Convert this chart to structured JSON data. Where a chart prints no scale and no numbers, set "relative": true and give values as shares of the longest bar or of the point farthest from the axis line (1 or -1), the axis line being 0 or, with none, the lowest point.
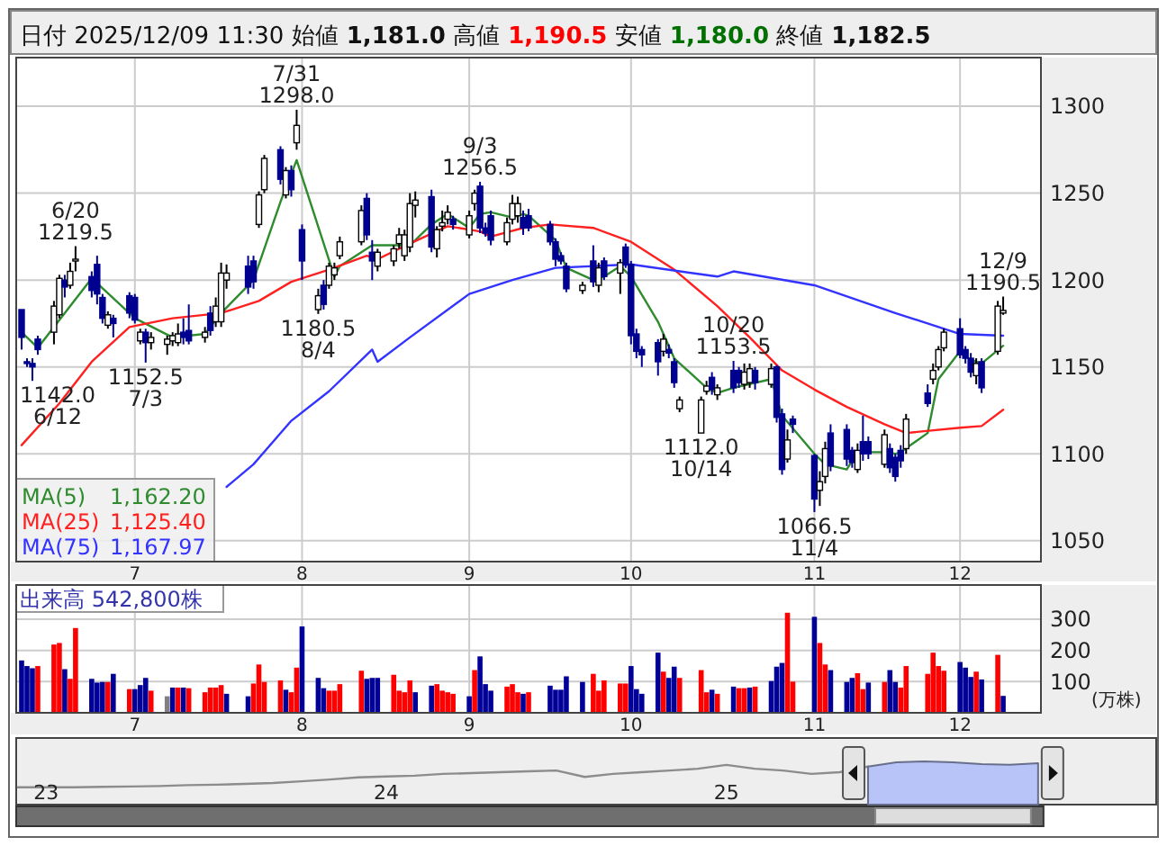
{
  "chart_data": [
    {
      "type": "candlestick",
      "title": "日付 2025/12/09 11:30 始値 1,181.0 高値 1,190.5 安値 1,180.0 終値 1,182.5",
      "x": [
        "2025-06-10",
        "2025-06-11",
        "2025-06-12",
        "2025-06-13",
        "2025-06-16",
        "2025-06-17",
        "2025-06-18",
        "2025-06-19",
        "2025-06-20",
        "2025-06-23",
        "2025-06-24",
        "2025-06-25",
        "2025-06-26",
        "2025-06-27",
        "2025-06-30",
        "2025-07-01",
        "2025-07-02",
        "2025-07-03",
        "2025-07-04",
        "2025-07-07",
        "2025-07-08",
        "2025-07-09",
        "2025-07-10",
        "2025-07-11",
        "2025-07-14",
        "2025-07-15",
        "2025-07-16",
        "2025-07-17",
        "2025-07-18",
        "2025-07-22",
        "2025-07-23",
        "2025-07-24",
        "2025-07-25",
        "2025-07-28",
        "2025-07-29",
        "2025-07-30",
        "2025-07-31",
        "2025-08-01",
        "2025-08-04",
        "2025-08-05",
        "2025-08-06",
        "2025-08-07",
        "2025-08-08",
        "2025-08-12",
        "2025-08-13",
        "2025-08-14",
        "2025-08-15",
        "2025-08-18",
        "2025-08-19",
        "2025-08-20",
        "2025-08-21",
        "2025-08-22",
        "2025-08-25",
        "2025-08-26",
        "2025-08-27",
        "2025-08-28",
        "2025-08-29",
        "2025-09-01",
        "2025-09-02",
        "2025-09-03",
        "2025-09-04",
        "2025-09-05",
        "2025-09-08",
        "2025-09-09",
        "2025-09-10",
        "2025-09-11",
        "2025-09-12",
        "2025-09-16",
        "2025-09-17",
        "2025-09-18",
        "2025-09-19",
        "2025-09-22",
        "2025-09-24",
        "2025-09-25",
        "2025-09-26",
        "2025-09-29",
        "2025-09-30",
        "2025-10-01",
        "2025-10-02",
        "2025-10-03",
        "2025-10-06",
        "2025-10-07",
        "2025-10-08",
        "2025-10-09",
        "2025-10-10",
        "2025-10-14",
        "2025-10-15",
        "2025-10-16",
        "2025-10-17",
        "2025-10-20",
        "2025-10-21",
        "2025-10-22",
        "2025-10-23",
        "2025-10-24",
        "2025-10-27",
        "2025-10-28",
        "2025-10-29",
        "2025-10-30",
        "2025-10-31",
        "2025-11-04",
        "2025-11-05",
        "2025-11-06",
        "2025-11-07",
        "2025-11-10",
        "2025-11-11",
        "2025-11-12",
        "2025-11-13",
        "2025-11-14",
        "2025-11-17",
        "2025-11-18",
        "2025-11-19",
        "2025-11-20",
        "2025-11-21",
        "2025-11-25",
        "2025-11-26",
        "2025-11-27",
        "2025-11-28",
        "2025-12-01",
        "2025-12-02",
        "2025-12-03",
        "2025-12-04",
        "2025-12-05",
        "2025-12-08",
        "2025-12-09"
      ],
      "ohlc": [
        [
          1183,
          1183,
          1160,
          1167
        ],
        [
          1153,
          1155,
          1150,
          1152
        ],
        [
          1152,
          1155,
          1142,
          1150
        ],
        [
          1166,
          1168,
          1157,
          1160
        ],
        [
          1170,
          1188,
          1163,
          1185
        ],
        [
          1180,
          1203,
          1178,
          1201
        ],
        [
          1200,
          1203,
          1190,
          1196
        ],
        [
          1197,
          1210,
          1195,
          1205
        ],
        [
          1212,
          1219.5,
          1205,
          1212
        ],
        [
          1202,
          1205,
          1190,
          1194
        ],
        [
          1209,
          1214,
          1186,
          1192
        ],
        [
          1190,
          1192,
          1175,
          1178
        ],
        [
          1174,
          1182,
          1172,
          1180
        ],
        [
          1178,
          1180,
          1167,
          1175
        ],
        [
          1191,
          1193,
          1178,
          1181
        ],
        [
          1190,
          1192,
          1175,
          1177
        ],
        [
          1165,
          1172,
          1163,
          1170
        ],
        [
          1170,
          1172,
          1152.5,
          1164
        ],
        [
          1164,
          1170,
          1160,
          1167
        ],
        [
          1163,
          1168,
          1157,
          1166
        ],
        [
          1165,
          1170,
          1162,
          1168
        ],
        [
          1164,
          1175,
          1162,
          1169
        ],
        [
          1170,
          1178,
          1163,
          1167
        ],
        [
          1171,
          1186,
          1163,
          1165
        ],
        [
          1167,
          1173,
          1164,
          1170
        ],
        [
          1181,
          1185,
          1168,
          1171
        ],
        [
          1176,
          1190,
          1173,
          1185
        ],
        [
          1176,
          1210,
          1173,
          1204
        ],
        [
          1200,
          1209,
          1195,
          1204
        ],
        [
          1208,
          1214,
          1192,
          1196
        ],
        [
          1211,
          1214,
          1195,
          1199
        ],
        [
          1232,
          1251,
          1230,
          1249
        ],
        [
          1252,
          1272,
          1250,
          1270
        ],
        [
          1275,
          1277,
          1255,
          1258
        ],
        [
          1249,
          1265,
          1247,
          1263
        ],
        [
          1263,
          1266,
          1248,
          1252
        ],
        [
          1279,
          1298,
          1275,
          1289
        ],
        [
          1229,
          1232,
          1200,
          1211
        ],
        [
          1183,
          1195,
          1180.5,
          1191
        ],
        [
          1197,
          1200,
          1183,
          1186
        ],
        [
          1197,
          1210,
          1195,
          1208
        ],
        [
          1203,
          1210,
          1200,
          1207
        ],
        [
          1214,
          1225,
          1212,
          1222
        ],
        [
          1222,
          1243,
          1220,
          1240
        ],
        [
          1247,
          1250,
          1223,
          1226
        ],
        [
          1216,
          1223,
          1200,
          1211
        ],
        [
          1208,
          1218,
          1205,
          1216
        ],
        [
          1211,
          1220,
          1208,
          1218
        ],
        [
          1221,
          1230,
          1218,
          1226
        ],
        [
          1214,
          1229,
          1211,
          1226
        ],
        [
          1219,
          1250,
          1216,
          1244
        ],
        [
          1243,
          1251,
          1236,
          1246
        ],
        [
          1248,
          1252,
          1216,
          1219
        ],
        [
          1218,
          1231,
          1213,
          1229
        ],
        [
          1231,
          1240,
          1228,
          1233
        ],
        [
          1235,
          1243,
          1232,
          1239
        ],
        [
          1235,
          1237,
          1229,
          1232
        ],
        [
          1226,
          1240,
          1224,
          1237
        ],
        [
          1244,
          1252,
          1240,
          1250
        ],
        [
          1254,
          1256.5,
          1227,
          1230
        ],
        [
          1230,
          1233,
          1225,
          1227
        ],
        [
          1237,
          1240,
          1220,
          1223
        ],
        [
          1222,
          1236,
          1220,
          1233
        ],
        [
          1235,
          1249,
          1232,
          1244
        ],
        [
          1237,
          1248,
          1233,
          1244
        ],
        [
          1236,
          1240,
          1226,
          1230
        ],
        [
          1237,
          1241,
          1228,
          1230
        ],
        [
          1232,
          1234,
          1220,
          1222
        ],
        [
          1222,
          1224,
          1208,
          1212
        ],
        [
          1214,
          1216,
          1209,
          1211
        ],
        [
          1208,
          1210,
          1193,
          1195
        ],
        [
          1194,
          1199,
          1192,
          1197
        ],
        [
          1211,
          1220,
          1196,
          1199
        ],
        [
          1197,
          1210,
          1193,
          1207
        ],
        [
          1211,
          1213,
          1200,
          1202
        ],
        [
          1204,
          1212,
          1192,
          1210
        ],
        [
          1219,
          1221,
          1207,
          1209
        ],
        [
          1209,
          1211,
          1163,
          1168
        ],
        [
          1169,
          1172,
          1155,
          1159
        ],
        [
          1160,
          1162,
          1150,
          1157
        ],
        [
          1164,
          1166,
          1145,
          1153
        ],
        [
          1159,
          1169,
          1156,
          1166
        ],
        [
          1160,
          1163,
          1155,
          1158
        ],
        [
          1153,
          1155,
          1138,
          1141
        ],
        [
          1126,
          1133,
          1124,
          1131
        ],
        [
          1112,
          1133,
          1112,
          1131
        ],
        [
          1136,
          1142,
          1134,
          1139
        ],
        [
          1144,
          1147,
          1134,
          1137
        ],
        [
          1134,
          1140,
          1131,
          1138
        ],
        [
          1148,
          1153.5,
          1135,
          1138
        ],
        [
          1148,
          1150,
          1138,
          1141
        ],
        [
          1140,
          1152,
          1137,
          1147
        ],
        [
          1141,
          1152,
          1138,
          1149
        ],
        [
          1148,
          1150,
          1137,
          1141
        ],
        [
          1140,
          1152,
          1138,
          1149
        ],
        [
          1150,
          1151,
          1118,
          1121
        ],
        [
          1123,
          1126,
          1088,
          1091
        ],
        [
          1097,
          1114,
          1095,
          1108
        ],
        [
          1120,
          1122,
          1112,
          1117
        ],
        [
          1099,
          1100,
          1066.5,
          1074
        ],
        [
          1079,
          1090,
          1070,
          1084
        ],
        [
          1087,
          1107,
          1083,
          1103
        ],
        [
          1112,
          1117,
          1090,
          1093
        ],
        [
          1114,
          1117,
          1093,
          1097
        ],
        [
          1102,
          1104,
          1092,
          1095
        ],
        [
          1091,
          1106,
          1089,
          1102
        ],
        [
          1107,
          1122,
          1096,
          1100
        ],
        [
          1107,
          1110,
          1097,
          1100
        ],
        [
          1094,
          1114,
          1092,
          1111
        ],
        [
          1103,
          1106,
          1089,
          1092
        ],
        [
          1098,
          1100,
          1084,
          1087
        ],
        [
          1102,
          1105,
          1092,
          1096
        ],
        [
          1103,
          1123,
          1100,
          1120
        ],
        [
          1135,
          1140,
          1127,
          1129
        ],
        [
          1143,
          1152,
          1140,
          1148
        ],
        [
          1150,
          1162,
          1148,
          1160
        ],
        [
          1161,
          1172,
          1159,
          1170
        ],
        [
          1172,
          1178,
          1155,
          1157
        ],
        [
          1160,
          1162,
          1152,
          1155
        ],
        [
          1155,
          1158,
          1144,
          1147
        ],
        [
          1145,
          1155,
          1140,
          1152
        ],
        [
          1153,
          1155,
          1135,
          1138
        ],
        [
          1159,
          1188,
          1157,
          1185
        ],
        [
          1181,
          1190.5,
          1180,
          1182.5
        ]
      ],
      "series": [
        {
          "type": "line",
          "name": "MA(5) 1,162.20",
          "color": "#2e8b2e",
          "x": [
            "2025-06-10",
            "2025-06-13",
            "2025-06-23",
            "2025-07-01",
            "2025-07-08",
            "2025-07-14",
            "2025-07-17",
            "2025-07-23",
            "2025-07-28",
            "2025-07-31",
            "2025-08-07",
            "2025-08-08",
            "2025-08-14",
            "2025-08-21",
            "2025-08-25",
            "2025-08-28",
            "2025-09-01",
            "2025-09-03",
            "2025-09-05",
            "2025-09-09",
            "2025-09-11",
            "2025-09-12",
            "2025-09-17",
            "2025-09-19",
            "2025-09-24",
            "2025-09-26",
            "2025-09-29",
            "2025-10-01",
            "2025-10-06",
            "2025-10-09",
            "2025-10-15",
            "2025-10-17",
            "2025-10-20",
            "2025-10-27",
            "2025-10-29",
            "2025-11-04",
            "2025-11-06",
            "2025-11-10",
            "2025-11-12",
            "2025-11-17",
            "2025-11-19",
            "2025-11-20",
            "2025-11-25",
            "2025-11-27",
            "2025-12-01",
            "2025-12-03",
            "2025-12-05",
            "2025-12-09"
          ],
          "values": [
            1170,
            1161,
            1201,
            1178,
            1167,
            1169,
            1181,
            1200,
            1245,
            1269,
            1202,
            1208,
            1220,
            1220,
            1232,
            1238,
            1230,
            1238,
            1239,
            1236,
            1238,
            1237,
            1223,
            1207,
            1200,
            1202,
            1208,
            1202,
            1176,
            1155,
            1138,
            1135,
            1138,
            1143,
            1122,
            1100,
            1094,
            1091,
            1101,
            1101,
            1100,
            1101,
            1112,
            1143,
            1159,
            1154,
            1152,
            1162.2
          ]
        },
        {
          "type": "line",
          "name": "MA(25) 1,125.40",
          "color": "#ff2020",
          "x": [
            "2025-06-10",
            "2025-06-17",
            "2025-06-23",
            "2025-06-30",
            "2025-07-08",
            "2025-07-17",
            "2025-07-24",
            "2025-07-30",
            "2025-08-06",
            "2025-08-13",
            "2025-08-15",
            "2025-08-21",
            "2025-08-28",
            "2025-09-03",
            "2025-09-05",
            "2025-09-11",
            "2025-09-16",
            "2025-09-24",
            "2025-10-01",
            "2025-10-09",
            "2025-10-17",
            "2025-10-23",
            "2025-10-29",
            "2025-11-04",
            "2025-11-10",
            "2025-11-17",
            "2025-11-21",
            "2025-12-01",
            "2025-12-05",
            "2025-12-09"
          ],
          "values": [
            1105,
            1129,
            1153,
            1173,
            1178,
            1181,
            1188,
            1199,
            1206,
            1214,
            1212,
            1221,
            1231,
            1228,
            1225,
            1230,
            1232,
            1230,
            1222,
            1206,
            1185,
            1167,
            1148,
            1137,
            1127,
            1117,
            1112,
            1115,
            1116,
            1125.4
          ]
        },
        {
          "type": "line",
          "name": "MA(75) 1,167.97",
          "color": "#3333ff",
          "x": [
            "2025-07-18",
            "2025-07-23",
            "2025-07-30",
            "2025-08-06",
            "2025-08-14",
            "2025-08-15",
            "2025-08-21",
            "2025-09-01",
            "2025-09-09",
            "2025-09-17",
            "2025-10-01",
            "2025-10-17",
            "2025-10-20",
            "2025-11-04",
            "2025-11-19",
            "2025-12-01",
            "2025-12-09"
          ],
          "values": [
            1081,
            1094,
            1119,
            1136,
            1160,
            1153,
            1167,
            1192,
            1200,
            1207,
            1209,
            1202,
            1205,
            1197,
            1181,
            1169,
            1167.97
          ]
        }
      ],
      "ylim": [
        1038,
        1328
      ],
      "yticks": [
        1050,
        1100,
        1150,
        1200,
        1250,
        1300
      ],
      "xlim": [
        "2025-06-09",
        "2025-12-16"
      ],
      "xticks": [
        {
          "value": "2025-07-01",
          "label": "7"
        },
        {
          "value": "2025-08-01",
          "label": "8"
        },
        {
          "value": "2025-09-01",
          "label": "9"
        },
        {
          "value": "2025-10-01",
          "label": "10"
        },
        {
          "value": "2025-11-04",
          "label": "11"
        },
        {
          "value": "2025-12-01",
          "label": "12"
        }
      ],
      "grid": true,
      "legend": "bottom left",
      "annotations": [
        {
          "text": "1142.0\n6/12",
          "x": "2025-06-12",
          "y": 1142
        },
        {
          "text": "6/20\n1219.5",
          "x": "2025-06-20",
          "y": 1219.5
        },
        {
          "text": "1152.5\n7/3",
          "x": "2025-07-03",
          "y": 1152.5
        },
        {
          "text": "7/31\n1298.0",
          "x": "2025-07-31",
          "y": 1298
        },
        {
          "text": "1180.5\n8/4",
          "x": "2025-08-04",
          "y": 1180.5
        },
        {
          "text": "9/3\n1256.5",
          "x": "2025-09-03",
          "y": 1256.5
        },
        {
          "text": "10/20\n1153.5",
          "x": "2025-10-20",
          "y": 1153.5
        },
        {
          "text": "1112.0\n10/14",
          "x": "2025-10-14",
          "y": 1112
        },
        {
          "text": "1066.5\n11/4",
          "x": "2025-11-04",
          "y": 1066.5
        },
        {
          "text": "12/9\n1190.5",
          "x": "2025-12-09",
          "y": 1190.5
        }
      ]
    },
    {
      "type": "bar",
      "title": "出来高 542,800株",
      "ylabel": "(万株)",
      "x": [
        "2025-06-10",
        "2025-06-11",
        "2025-06-12",
        "2025-06-13",
        "2025-06-16",
        "2025-06-17",
        "2025-06-18",
        "2025-06-19",
        "2025-06-20",
        "2025-06-23",
        "2025-06-24",
        "2025-06-25",
        "2025-06-26",
        "2025-06-27",
        "2025-06-30",
        "2025-07-01",
        "2025-07-02",
        "2025-07-03",
        "2025-07-04",
        "2025-07-07",
        "2025-07-08",
        "2025-07-09",
        "2025-07-10",
        "2025-07-11",
        "2025-07-14",
        "2025-07-15",
        "2025-07-16",
        "2025-07-17",
        "2025-07-18",
        "2025-07-22",
        "2025-07-23",
        "2025-07-24",
        "2025-07-25",
        "2025-07-28",
        "2025-07-29",
        "2025-07-30",
        "2025-07-31",
        "2025-08-01",
        "2025-08-04",
        "2025-08-05",
        "2025-08-06",
        "2025-08-07",
        "2025-08-08",
        "2025-08-12",
        "2025-08-13",
        "2025-08-14",
        "2025-08-15",
        "2025-08-18",
        "2025-08-19",
        "2025-08-20",
        "2025-08-21",
        "2025-08-22",
        "2025-08-25",
        "2025-08-26",
        "2025-08-27",
        "2025-08-28",
        "2025-08-29",
        "2025-09-01",
        "2025-09-02",
        "2025-09-03",
        "2025-09-04",
        "2025-09-05",
        "2025-09-08",
        "2025-09-09",
        "2025-09-10",
        "2025-09-11",
        "2025-09-12",
        "2025-09-16",
        "2025-09-17",
        "2025-09-18",
        "2025-09-19",
        "2025-09-22",
        "2025-09-24",
        "2025-09-25",
        "2025-09-26",
        "2025-09-29",
        "2025-09-30",
        "2025-10-01",
        "2025-10-02",
        "2025-10-03",
        "2025-10-06",
        "2025-10-07",
        "2025-10-08",
        "2025-10-09",
        "2025-10-10",
        "2025-10-14",
        "2025-10-15",
        "2025-10-16",
        "2025-10-17",
        "2025-10-20",
        "2025-10-21",
        "2025-10-22",
        "2025-10-23",
        "2025-10-24",
        "2025-10-27",
        "2025-10-28",
        "2025-10-29",
        "2025-10-30",
        "2025-10-31",
        "2025-11-04",
        "2025-11-05",
        "2025-11-06",
        "2025-11-07",
        "2025-11-10",
        "2025-11-11",
        "2025-11-12",
        "2025-11-13",
        "2025-11-14",
        "2025-11-17",
        "2025-11-18",
        "2025-11-19",
        "2025-11-20",
        "2025-11-21",
        "2025-11-25",
        "2025-11-26",
        "2025-11-27",
        "2025-11-28",
        "2025-12-01",
        "2025-12-02",
        "2025-12-03",
        "2025-12-04",
        "2025-12-05",
        "2025-12-08",
        "2025-12-09"
      ],
      "values": [
        168,
        150,
        143,
        150,
        219,
        224,
        140,
        109,
        272,
        109,
        97,
        99,
        99,
        125,
        76,
        76,
        89,
        112,
        71,
        53,
        81,
        81,
        81,
        79,
        66,
        81,
        81,
        89,
        61,
        53,
        94,
        155,
        99,
        104,
        74,
        66,
        145,
        277,
        112,
        79,
        71,
        71,
        92,
        135,
        109,
        112,
        112,
        122,
        71,
        66,
        104,
        66,
        87,
        92,
        71,
        66,
        61,
        53,
        137,
        181,
        92,
        71,
        84,
        92,
        66,
        61,
        66,
        87,
        74,
        74,
        117,
        99,
        125,
        71,
        104,
        94,
        94,
        150,
        76,
        61,
        193,
        132,
        112,
        148,
        112,
        137,
        66,
        74,
        61,
        84,
        79,
        79,
        81,
        84,
        102,
        148,
        160,
        321,
        100,
        308,
        224,
        155,
        137,
        99,
        112,
        127,
        76,
        97,
        99,
        137,
        99,
        81,
        150,
        125,
        193,
        150,
        135,
        163,
        145,
        115,
        132,
        107,
        186,
        54.28
      ],
      "colors": [
        "#000099",
        "#000099",
        "#000099",
        "#ff0000",
        "#ff0000",
        "#ff0000",
        "#000099",
        "#ff0000",
        "#ff0000",
        "#000099",
        "#000099",
        "#000099",
        "#ff0000",
        "#000099",
        "#ff0000",
        "#000099",
        "#000099",
        "#000099",
        "#ff0000",
        "#808080",
        "#000099",
        "#ff0000",
        "#000099",
        "#ff0000",
        "#ff0000",
        "#ff0000",
        "#ff0000",
        "#ff0000",
        "#000099",
        "#000099",
        "#ff0000",
        "#ff0000",
        "#ff0000",
        "#ff0000",
        "#000099",
        "#ff0000",
        "#ff0000",
        "#000099",
        "#000099",
        "#000099",
        "#ff0000",
        "#ff0000",
        "#ff0000",
        "#ff0000",
        "#000099",
        "#000099",
        "#000099",
        "#ff0000",
        "#ff0000",
        "#ff0000",
        "#ff0000",
        "#000099",
        "#000099",
        "#ff0000",
        "#ff0000",
        "#ff0000",
        "#ff0000",
        "#000099",
        "#ff0000",
        "#000099",
        "#000099",
        "#000099",
        "#ff0000",
        "#ff0000",
        "#ff0000",
        "#000099",
        "#ff0000",
        "#000099",
        "#000099",
        "#000099",
        "#000099",
        "#000099",
        "#ff0000",
        "#ff0000",
        "#ff0000",
        "#ff0000",
        "#ff0000",
        "#000099",
        "#000099",
        "#000099",
        "#000099",
        "#ff0000",
        "#000099",
        "#000099",
        "#ff0000",
        "#ff0000",
        "#ff0000",
        "#000099",
        "#ff0000",
        "#000099",
        "#ff0000",
        "#ff0000",
        "#000099",
        "#ff0000",
        "#000099",
        "#000099",
        "#000099",
        "#ff0000",
        "#ff0000",
        "#000099",
        "#ff0000",
        "#ff0000",
        "#000099",
        "#000099",
        "#000099",
        "#ff0000",
        "#ff0000",
        "#000099",
        "#ff0000",
        "#000099",
        "#000099",
        "#ff0000",
        "#ff0000",
        "#ff0000",
        "#ff0000",
        "#ff0000",
        "#ff0000",
        "#000099",
        "#000099",
        "#000099",
        "#ff0000",
        "#000099",
        "#ff0000",
        "#000099"
      ],
      "ylim": [
        0,
        410
      ],
      "yticks": [
        100,
        200,
        300
      ],
      "xlim": [
        "2025-06-09",
        "2025-12-16"
      ],
      "xticks": [
        {
          "value": "2025-07-01",
          "label": "7"
        },
        {
          "value": "2025-08-01",
          "label": "8"
        },
        {
          "value": "2025-09-01",
          "label": "9"
        },
        {
          "value": "2025-10-01",
          "label": "10"
        },
        {
          "value": "2025-11-04",
          "label": "11"
        },
        {
          "value": "2025-12-01",
          "label": "12"
        }
      ],
      "grid": true
    },
    {
      "type": "line",
      "relative": true,
      "categories": [
        null,
        "23",
        null,
        null,
        null,
        null,
        null,
        null,
        null,
        null,
        null,
        null,
        null,
        "24",
        null,
        null,
        null,
        null,
        null,
        null,
        null,
        null,
        null,
        null,
        null,
        "25",
        null,
        null,
        null,
        null,
        null,
        null,
        null,
        null,
        null,
        null,
        null
      ],
      "series": [
        {
          "type": "line",
          "color": "#8c8c8c",
          "values": [
            0.4,
            0.4,
            0.4,
            0.41,
            0.42,
            0.43,
            0.45,
            0.46,
            0.48,
            0.5,
            0.54,
            0.58,
            0.63,
            0.65,
            0.67,
            0.71,
            0.73,
            0.75,
            0.77,
            0.79,
            0.64,
            0.71,
            0.75,
            0.79,
            0.83,
            0.92,
            0.83,
            0.79,
            0.71,
            0.75,
            0.88,
            null,
            null,
            null,
            null,
            null,
            null
          ]
        },
        {
          "type": "area",
          "color": "#b8c4f8",
          "values": [
            null,
            null,
            null,
            null,
            null,
            null,
            null,
            null,
            null,
            null,
            null,
            null,
            null,
            null,
            null,
            null,
            null,
            null,
            null,
            null,
            null,
            null,
            null,
            null,
            null,
            null,
            null,
            null,
            null,
            null,
            0.88,
            0.98,
            1,
            0.98,
            0.94,
            0.92,
            0.96
          ]
        }
      ]
    }
  ]
}
